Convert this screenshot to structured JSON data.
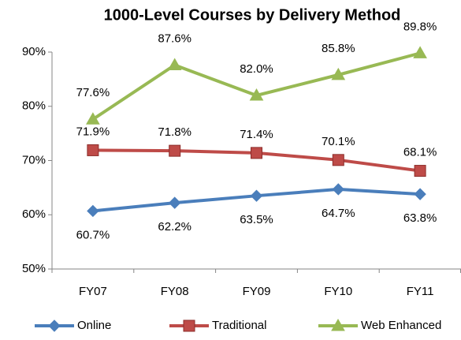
{
  "chart_data": {
    "type": "line",
    "title": "1000-Level Courses by Delivery Method",
    "categories": [
      "FY07",
      "FY08",
      "FY09",
      "FY10",
      "FY11"
    ],
    "series": [
      {
        "name": "Online",
        "color": "#4a7ebb",
        "marker": "diamond",
        "values": [
          60.7,
          62.2,
          63.5,
          64.7,
          63.8
        ],
        "value_labels": [
          "60.7%",
          "62.2%",
          "63.5%",
          "64.7%",
          "63.8%"
        ]
      },
      {
        "name": "Traditional",
        "color": "#be4b48",
        "marker": "square",
        "values": [
          71.9,
          71.8,
          71.4,
          70.1,
          68.1
        ],
        "value_labels": [
          "71.9%",
          "71.8%",
          "71.4%",
          "70.1%",
          "68.1%"
        ]
      },
      {
        "name": "Web Enhanced",
        "color": "#98b954",
        "marker": "triangle",
        "values": [
          77.6,
          87.6,
          82.0,
          85.8,
          89.8
        ],
        "value_labels": [
          "77.6%",
          "87.6%",
          "82.0%",
          "85.8%",
          "89.8%"
        ]
      }
    ],
    "ylim": [
      50,
      90
    ],
    "yticks": [
      {
        "value": 50,
        "label": "50%"
      },
      {
        "value": 60,
        "label": "60%"
      },
      {
        "value": 70,
        "label": "70%"
      },
      {
        "value": 80,
        "label": "80%"
      },
      {
        "value": 90,
        "label": "90%"
      }
    ],
    "grid": false,
    "legend": "bottom"
  }
}
